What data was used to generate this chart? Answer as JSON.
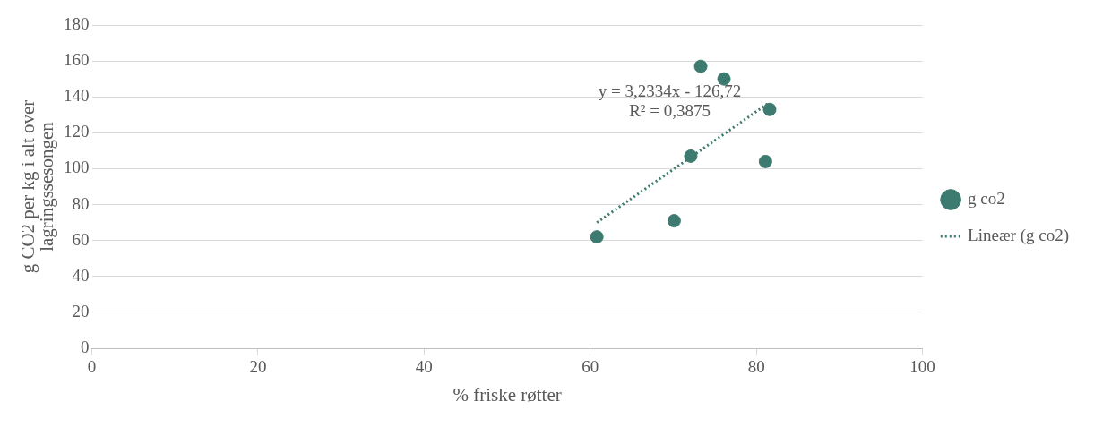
{
  "chart_data": {
    "type": "scatter",
    "xlabel": "% friske røtter",
    "ylabel": "g CO2 per kg i alt over lagringssesongen",
    "xlim": [
      0,
      100
    ],
    "xticks": [
      0,
      20,
      40,
      60,
      80,
      100
    ],
    "ylim": [
      0,
      180
    ],
    "yticks": [
      0,
      20,
      40,
      60,
      80,
      100,
      120,
      140,
      160,
      180
    ],
    "grid": "y",
    "legend": "right",
    "annotations": [
      "y = 3,2334x - 126,72",
      "R² = 0,3875"
    ],
    "series": [
      {
        "name": "g co2",
        "type": "scatter",
        "marker": "circle",
        "color": "#3d7b70",
        "x": [
          73.3,
          76.1,
          81.6,
          72.1,
          81.1,
          70.1,
          60.8
        ],
        "values": [
          157,
          150,
          133,
          107,
          104,
          71,
          62
        ]
      },
      {
        "name": "Lineær (g co2)",
        "type": "line",
        "marker": "none",
        "line_style": "dotted",
        "color": "#3d7b70",
        "x": [
          60.8,
          81.6
        ],
        "values": [
          70,
          137
        ]
      }
    ]
  }
}
